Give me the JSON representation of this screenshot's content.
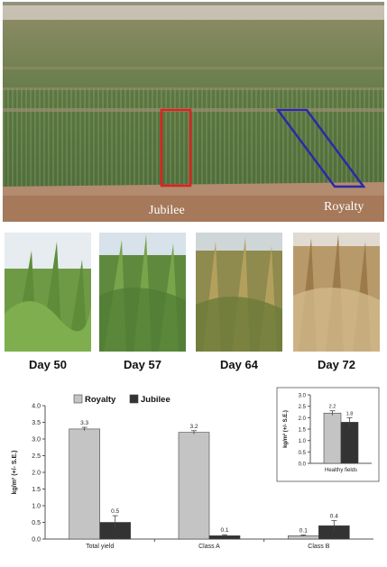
{
  "aerial": {
    "labels": [
      "Jubilee",
      "Royalty"
    ],
    "colors": {
      "jubilee_box": "#e02020",
      "royalty_box": "#2a2aa8"
    }
  },
  "photos": {
    "days": [
      "Day 50",
      "Day 57",
      "Day 64",
      "Day 72"
    ]
  },
  "chart_data": [
    {
      "type": "bar",
      "categories": [
        "Total yield",
        "Class A",
        "Class B"
      ],
      "series": [
        {
          "name": "Royalty",
          "values": [
            3.3,
            3.2,
            0.1
          ],
          "color": "#c4c4c4"
        },
        {
          "name": "Jubilee",
          "values": [
            0.5,
            0.1,
            0.4
          ],
          "color": "#333333"
        }
      ],
      "errors": [
        [
          0.05,
          0.05,
          0.02
        ],
        [
          0.2,
          0.03,
          0.15
        ]
      ],
      "value_labels": [
        [
          "3.3",
          "3.2",
          "0.1"
        ],
        [
          "0.5",
          "0.1",
          "0.4"
        ]
      ],
      "ylabel": "kg/m² (+/- S.E.)",
      "ylim": [
        0,
        4.0
      ],
      "yticks": [
        "0.0",
        "0.5",
        "1.0",
        "1.5",
        "2.0",
        "2.5",
        "3.0",
        "3.5",
        "4.0"
      ],
      "legend": "top-left",
      "grid": false
    },
    {
      "type": "bar",
      "categories": [
        "Healthy fields"
      ],
      "series": [
        {
          "name": "Royalty",
          "values": [
            2.2
          ],
          "color": "#c4c4c4"
        },
        {
          "name": "Jubilee",
          "values": [
            1.8
          ],
          "color": "#333333"
        }
      ],
      "errors": [
        [
          0.1
        ],
        [
          0.2
        ]
      ],
      "value_labels": [
        [
          "2.2"
        ],
        [
          "1.8"
        ]
      ],
      "ylabel": "kg/m² (+/- S.E.)",
      "ylim": [
        0,
        3.0
      ],
      "yticks": [
        "0.0",
        "0.5",
        "1.0",
        "1.5",
        "2.0",
        "2.5",
        "3.0"
      ],
      "grid": false
    }
  ]
}
